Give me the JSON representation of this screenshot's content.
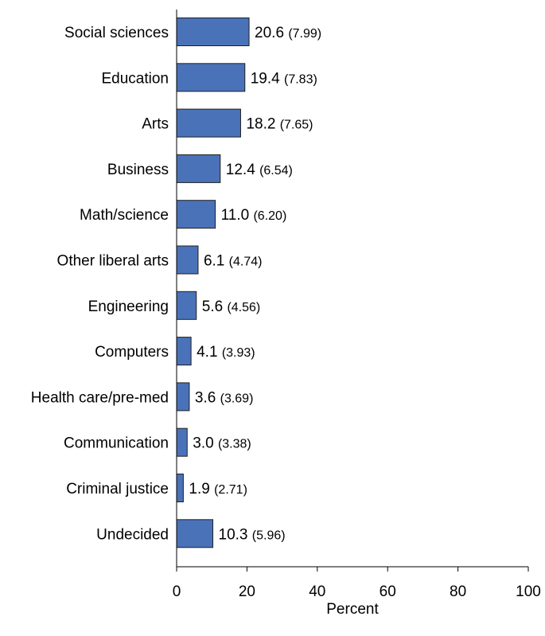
{
  "chart_data": {
    "type": "bar",
    "orientation": "horizontal",
    "categories": [
      "Social sciences",
      "Education",
      "Arts",
      "Business",
      "Math/science",
      "Other liberal arts",
      "Engineering",
      "Computers",
      "Health care/pre-med",
      "Communication",
      "Criminal justice",
      "Undecided"
    ],
    "values": [
      20.6,
      19.4,
      18.2,
      12.4,
      11.0,
      6.1,
      5.6,
      4.1,
      3.6,
      3.0,
      1.9,
      10.3
    ],
    "value_labels": [
      "20.6",
      "19.4",
      "18.2",
      "12.4",
      "11.0",
      "6.1",
      "5.6",
      "4.1",
      "3.6",
      "3.0",
      "1.9",
      "10.3"
    ],
    "standard_errors": [
      "(7.99)",
      "(7.83)",
      "(7.65)",
      "(6.54)",
      "(6.20)",
      "(4.74)",
      "(4.56)",
      "(3.93)",
      "(3.69)",
      "(3.38)",
      "(2.71)",
      "(5.96)"
    ],
    "x_ticks": [
      "0",
      "20",
      "40",
      "60",
      "80",
      "100"
    ],
    "xlim": [
      0,
      100
    ],
    "xlabel": "Percent",
    "ylabel": "",
    "title": "",
    "grid": false,
    "bar_color": "#4a72b8"
  }
}
